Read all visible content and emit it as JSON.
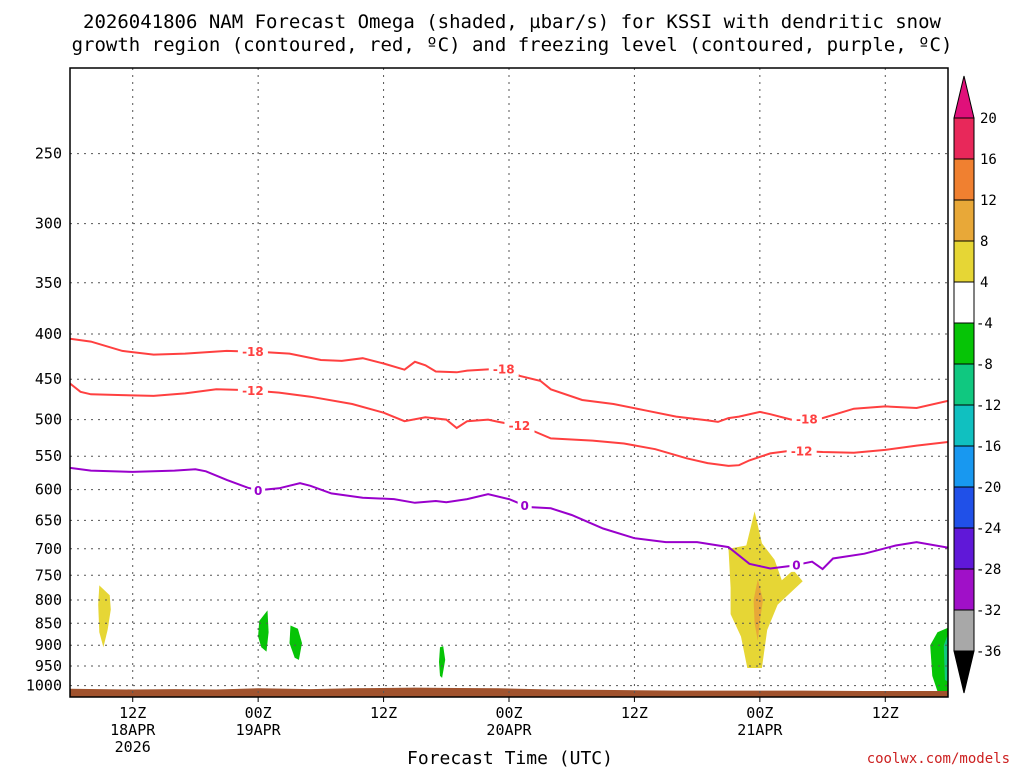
{
  "chart_data": {
    "type": "contour-heatmap",
    "title": [
      "2026041806 NAM Forecast Omega (shaded, µbar/s) for KSSI with dendritic snow",
      "growth region (contoured, red, ºC) and freezing level (contoured, purple, ºC)"
    ],
    "xlabel": "Forecast Time (UTC)",
    "credit": "coolwx.com/models",
    "x_range_hours": [
      0,
      84
    ],
    "x_ticks": [
      {
        "hour": 6,
        "lines": [
          "12Z",
          "18APR",
          "2026"
        ]
      },
      {
        "hour": 18,
        "lines": [
          "00Z",
          "19APR"
        ]
      },
      {
        "hour": 30,
        "lines": [
          "12Z"
        ]
      },
      {
        "hour": 42,
        "lines": [
          "00Z",
          "20APR"
        ]
      },
      {
        "hour": 54,
        "lines": [
          "12Z"
        ]
      },
      {
        "hour": 66,
        "lines": [
          "00Z",
          "21APR"
        ]
      },
      {
        "hour": 78,
        "lines": [
          "12Z"
        ]
      }
    ],
    "y_scale": "log",
    "y_range_hpa": [
      1030,
      200
    ],
    "y_ticks": [
      250,
      300,
      350,
      400,
      450,
      500,
      550,
      600,
      650,
      700,
      750,
      800,
      850,
      900,
      950,
      1000
    ],
    "grid": true,
    "colorbar": {
      "labels": [
        "20",
        "16",
        "12",
        "8",
        "4",
        "-4",
        "-8",
        "-12",
        "-16",
        "-20",
        "-24",
        "-28",
        "-32",
        "-36"
      ],
      "colors": [
        "#e8285a",
        "#f08030",
        "#e8a838",
        "#e6d635",
        "#ffffff",
        "#06c406",
        "#10c880",
        "#10c0c0",
        "#1898f0",
        "#2050e8",
        "#6018d8",
        "#a010c8",
        "#a8a8a8"
      ],
      "top_arrow_color": "#e0107a",
      "bottom_arrow_color": "#000000"
    },
    "contours": [
      {
        "name": "-18",
        "color": "#ff4040",
        "label_hours": [
          17.5,
          41.5,
          70.5
        ],
        "points": [
          [
            0,
            405
          ],
          [
            2,
            408
          ],
          [
            5,
            418
          ],
          [
            8,
            422
          ],
          [
            11,
            421
          ],
          [
            15,
            418
          ],
          [
            18,
            419
          ],
          [
            21,
            421
          ],
          [
            24,
            428
          ],
          [
            26,
            429
          ],
          [
            28,
            426
          ],
          [
            30,
            432
          ],
          [
            32,
            439
          ],
          [
            33,
            430
          ],
          [
            34,
            434
          ],
          [
            35,
            441
          ],
          [
            37,
            442
          ],
          [
            38,
            440
          ],
          [
            41,
            438
          ],
          [
            42,
            438
          ],
          [
            43,
            446
          ],
          [
            45,
            452
          ],
          [
            46,
            462
          ],
          [
            49,
            475
          ],
          [
            52,
            480
          ],
          [
            55,
            488
          ],
          [
            58,
            496
          ],
          [
            61,
            501
          ],
          [
            62,
            503
          ],
          [
            63,
            498
          ],
          [
            64,
            496
          ],
          [
            66,
            490
          ],
          [
            67,
            493
          ],
          [
            69,
            500
          ],
          [
            72,
            498
          ],
          [
            75,
            486
          ],
          [
            78,
            483
          ],
          [
            81,
            485
          ],
          [
            84,
            476
          ]
        ]
      },
      {
        "name": "-12",
        "color": "#ff4040",
        "label_hours": [
          17.5,
          43,
          70
        ],
        "points": [
          [
            0,
            455
          ],
          [
            1,
            465
          ],
          [
            2,
            468
          ],
          [
            5,
            469
          ],
          [
            8,
            470
          ],
          [
            11,
            467
          ],
          [
            14,
            462
          ],
          [
            17,
            463
          ],
          [
            20,
            466
          ],
          [
            23,
            471
          ],
          [
            27,
            480
          ],
          [
            30,
            491
          ],
          [
            32,
            502
          ],
          [
            34,
            497
          ],
          [
            36,
            500
          ],
          [
            37,
            511
          ],
          [
            38,
            502
          ],
          [
            40,
            500
          ],
          [
            41,
            503
          ],
          [
            43,
            508
          ],
          [
            44,
            513
          ],
          [
            46,
            525
          ],
          [
            50,
            528
          ],
          [
            53,
            532
          ],
          [
            56,
            540
          ],
          [
            59,
            553
          ],
          [
            61,
            560
          ],
          [
            63,
            564
          ],
          [
            64,
            563
          ],
          [
            65,
            556
          ],
          [
            67,
            546
          ],
          [
            69,
            542
          ],
          [
            72,
            544
          ],
          [
            75,
            545
          ],
          [
            78,
            541
          ],
          [
            81,
            535
          ],
          [
            84,
            530
          ]
        ]
      },
      {
        "name": "0",
        "color": "#9900cc",
        "label_hours": [
          18,
          43.5,
          69.5
        ],
        "points": [
          [
            0,
            567
          ],
          [
            2,
            571
          ],
          [
            6,
            573
          ],
          [
            10,
            571
          ],
          [
            12,
            569
          ],
          [
            13,
            572
          ],
          [
            15,
            585
          ],
          [
            17,
            597
          ],
          [
            18,
            601
          ],
          [
            20,
            598
          ],
          [
            22,
            590
          ],
          [
            23,
            594
          ],
          [
            25,
            606
          ],
          [
            28,
            613
          ],
          [
            31,
            615
          ],
          [
            33,
            621
          ],
          [
            35,
            618
          ],
          [
            36,
            620
          ],
          [
            38,
            615
          ],
          [
            40,
            607
          ],
          [
            42,
            615
          ],
          [
            43,
            622
          ],
          [
            44,
            628
          ],
          [
            46,
            630
          ],
          [
            48,
            641
          ],
          [
            51,
            664
          ],
          [
            54,
            681
          ],
          [
            57,
            688
          ],
          [
            60,
            688
          ],
          [
            63,
            697
          ],
          [
            65,
            728
          ],
          [
            67,
            737
          ],
          [
            69,
            732
          ],
          [
            70,
            728
          ],
          [
            71,
            724
          ],
          [
            72,
            738
          ],
          [
            73,
            718
          ],
          [
            76,
            709
          ],
          [
            79,
            694
          ],
          [
            81,
            688
          ],
          [
            84,
            698
          ]
        ]
      }
    ],
    "omega_regions": [
      {
        "value_range": [
          4,
          8
        ],
        "color": "#e6d635",
        "polygon": [
          [
            2.8,
            770
          ],
          [
            3.8,
            790
          ],
          [
            3.9,
            820
          ],
          [
            3.6,
            865
          ],
          [
            3.2,
            905
          ],
          [
            2.8,
            870
          ],
          [
            2.7,
            810
          ]
        ]
      },
      {
        "value_range": [
          -8,
          -4
        ],
        "color": "#06c406",
        "polygon": [
          [
            18.1,
            845
          ],
          [
            18.9,
            822
          ],
          [
            19.0,
            870
          ],
          [
            18.8,
            915
          ],
          [
            18.3,
            905
          ],
          [
            18.0,
            880
          ]
        ]
      },
      {
        "value_range": [
          -8,
          -4
        ],
        "color": "#06c406",
        "polygon": [
          [
            21.1,
            855
          ],
          [
            21.8,
            862
          ],
          [
            22.2,
            895
          ],
          [
            21.9,
            935
          ],
          [
            21.5,
            930
          ],
          [
            21.0,
            895
          ]
        ]
      },
      {
        "value_range": [
          -8,
          -4
        ],
        "color": "#06c406",
        "polygon": [
          [
            35.4,
            905
          ],
          [
            35.7,
            902
          ],
          [
            35.9,
            935
          ],
          [
            35.6,
            980
          ],
          [
            35.4,
            975
          ],
          [
            35.3,
            940
          ]
        ]
      },
      {
        "value_range": [
          4,
          8
        ],
        "color": "#e6d635",
        "polygon": [
          [
            63.2,
            775
          ],
          [
            63.0,
            700
          ],
          [
            64.7,
            694
          ],
          [
            65.5,
            635
          ],
          [
            66.2,
            690
          ],
          [
            67.4,
            720
          ],
          [
            68.1,
            760
          ],
          [
            69.2,
            740
          ],
          [
            70.1,
            762
          ],
          [
            67.7,
            810
          ],
          [
            66.7,
            865
          ],
          [
            66.2,
            955
          ],
          [
            64.8,
            955
          ],
          [
            64.2,
            880
          ],
          [
            63.2,
            830
          ]
        ]
      },
      {
        "value_range": [
          8,
          12
        ],
        "color": "#e8a838",
        "polygon": [
          [
            65.4,
            800
          ],
          [
            65.8,
            758
          ],
          [
            66.3,
            800
          ],
          [
            66.0,
            845
          ],
          [
            65.8,
            890
          ],
          [
            65.5,
            850
          ]
        ]
      },
      {
        "value_range": [
          -8,
          -4
        ],
        "color": "#06c406",
        "polygon": [
          [
            82.5,
            975
          ],
          [
            82.3,
            900
          ],
          [
            83.0,
            870
          ],
          [
            84.0,
            860
          ],
          [
            84.0,
            1015
          ],
          [
            83.0,
            1015
          ]
        ]
      },
      {
        "value_range": [
          -12,
          -8
        ],
        "color": "#10c880",
        "polygon": [
          [
            83.6,
            900
          ],
          [
            83.9,
            880
          ],
          [
            84.0,
            880
          ],
          [
            84.0,
            990
          ],
          [
            83.7,
            985
          ]
        ]
      }
    ],
    "surface_pressure": [
      [
        0,
        1008
      ],
      [
        6,
        1010
      ],
      [
        10,
        1009
      ],
      [
        14,
        1010
      ],
      [
        18,
        1007
      ],
      [
        23,
        1009
      ],
      [
        27,
        1007
      ],
      [
        33,
        1005
      ],
      [
        37,
        1006
      ],
      [
        41,
        1007
      ],
      [
        46,
        1010
      ],
      [
        51,
        1011
      ],
      [
        58,
        1013
      ],
      [
        64,
        1013
      ],
      [
        70,
        1013
      ],
      [
        76,
        1014
      ],
      [
        84,
        1014
      ]
    ],
    "surface_color": "#a0522d"
  }
}
